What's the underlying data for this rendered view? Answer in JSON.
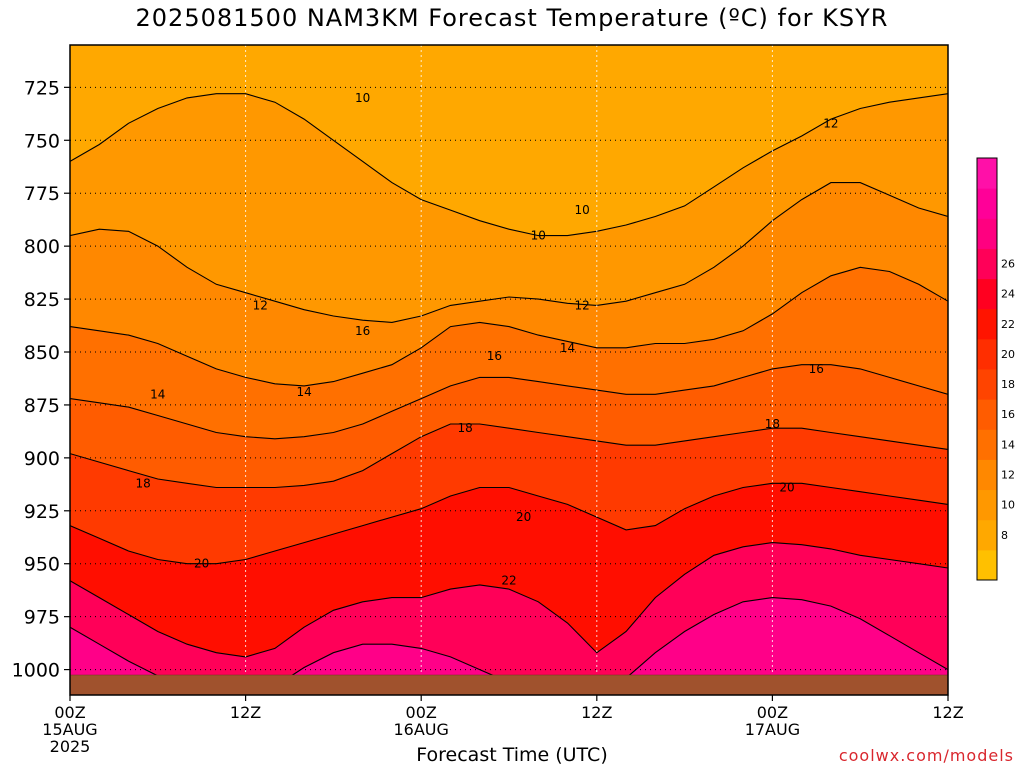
{
  "title": "2025081500 NAM3KM Forecast Temperature (ºC) for KSYR",
  "watermark": "coolwx.com/models",
  "chart_data": {
    "type": "heatmap",
    "title": "2025081500 NAM3KM Forecast Temperature (ºC) for KSYR",
    "xlabel": "Forecast Time (UTC)",
    "ylabel": "",
    "x_range_hours": [
      0,
      60
    ],
    "y_range_hpa": [
      705,
      1012
    ],
    "y_ticks": [
      725,
      750,
      775,
      800,
      825,
      850,
      875,
      900,
      925,
      950,
      975,
      1000
    ],
    "x_ticks": [
      {
        "hour": 0,
        "label": "00Z",
        "sub1": "15AUG",
        "sub2": "2025"
      },
      {
        "hour": 12,
        "label": "12Z",
        "sub1": "",
        "sub2": ""
      },
      {
        "hour": 24,
        "label": "00Z",
        "sub1": "16AUG",
        "sub2": ""
      },
      {
        "hour": 36,
        "label": "12Z",
        "sub1": "",
        "sub2": ""
      },
      {
        "hour": 48,
        "label": "00Z",
        "sub1": "17AUG",
        "sub2": ""
      },
      {
        "hour": 60,
        "label": "12Z",
        "sub1": "",
        "sub2": ""
      }
    ],
    "grid": true,
    "legend": "right",
    "colorbar": {
      "ticks": [
        8,
        10,
        12,
        14,
        16,
        18,
        20,
        22,
        24,
        26
      ],
      "colors": [
        "#ffc000",
        "#ffa800",
        "#ff9800",
        "#ff8800",
        "#ff7000",
        "#ff5c00",
        "#ff4400",
        "#ff2e00",
        "#ff1400",
        "#ff0020",
        "#ff0058",
        "#ff0080",
        "#ff0098",
        "#ff10a8"
      ]
    },
    "contour_labels": [
      "10",
      "10",
      "10",
      "12",
      "12",
      "12",
      "14",
      "14",
      "14",
      "16",
      "16",
      "16",
      "18",
      "18",
      "18",
      "20",
      "20",
      "20",
      "22"
    ],
    "isotherms": [
      {
        "value": 11,
        "points": [
          [
            0,
            760
          ],
          [
            2,
            752
          ],
          [
            4,
            742
          ],
          [
            6,
            735
          ],
          [
            8,
            730
          ],
          [
            10,
            728
          ],
          [
            12,
            728
          ],
          [
            14,
            732
          ],
          [
            16,
            740
          ],
          [
            18,
            750
          ],
          [
            20,
            760
          ],
          [
            22,
            770
          ],
          [
            24,
            778
          ],
          [
            26,
            783
          ],
          [
            28,
            788
          ],
          [
            30,
            792
          ],
          [
            32,
            795
          ],
          [
            34,
            795
          ],
          [
            36,
            793
          ],
          [
            38,
            790
          ],
          [
            40,
            786
          ],
          [
            42,
            781
          ],
          [
            44,
            772
          ],
          [
            46,
            763
          ],
          [
            48,
            755
          ],
          [
            50,
            748
          ],
          [
            52,
            740
          ],
          [
            54,
            735
          ],
          [
            56,
            732
          ],
          [
            58,
            730
          ],
          [
            60,
            728
          ]
        ]
      },
      {
        "value": 13,
        "points": [
          [
            0,
            795
          ],
          [
            2,
            792
          ],
          [
            4,
            793
          ],
          [
            6,
            800
          ],
          [
            8,
            810
          ],
          [
            10,
            818
          ],
          [
            12,
            822
          ],
          [
            14,
            826
          ],
          [
            16,
            830
          ],
          [
            18,
            833
          ],
          [
            20,
            835
          ],
          [
            22,
            836
          ],
          [
            24,
            833
          ],
          [
            26,
            828
          ],
          [
            28,
            826
          ],
          [
            30,
            824
          ],
          [
            32,
            825
          ],
          [
            34,
            827
          ],
          [
            36,
            828
          ],
          [
            38,
            826
          ],
          [
            40,
            822
          ],
          [
            42,
            818
          ],
          [
            44,
            810
          ],
          [
            46,
            800
          ],
          [
            48,
            788
          ],
          [
            50,
            778
          ],
          [
            52,
            770
          ],
          [
            54,
            770
          ],
          [
            56,
            776
          ],
          [
            58,
            782
          ],
          [
            60,
            786
          ]
        ]
      },
      {
        "value": 15,
        "points": [
          [
            0,
            838
          ],
          [
            2,
            840
          ],
          [
            4,
            842
          ],
          [
            6,
            846
          ],
          [
            8,
            852
          ],
          [
            10,
            858
          ],
          [
            12,
            862
          ],
          [
            14,
            865
          ],
          [
            16,
            866
          ],
          [
            18,
            864
          ],
          [
            20,
            860
          ],
          [
            22,
            856
          ],
          [
            24,
            848
          ],
          [
            26,
            838
          ],
          [
            28,
            836
          ],
          [
            30,
            838
          ],
          [
            32,
            842
          ],
          [
            34,
            845
          ],
          [
            36,
            848
          ],
          [
            38,
            848
          ],
          [
            40,
            846
          ],
          [
            42,
            846
          ],
          [
            44,
            844
          ],
          [
            46,
            840
          ],
          [
            48,
            832
          ],
          [
            50,
            822
          ],
          [
            52,
            814
          ],
          [
            54,
            810
          ],
          [
            56,
            812
          ],
          [
            58,
            818
          ],
          [
            60,
            826
          ]
        ]
      },
      {
        "value": 17,
        "points": [
          [
            0,
            872
          ],
          [
            2,
            874
          ],
          [
            4,
            876
          ],
          [
            6,
            880
          ],
          [
            8,
            884
          ],
          [
            10,
            888
          ],
          [
            12,
            890
          ],
          [
            14,
            891
          ],
          [
            16,
            890
          ],
          [
            18,
            888
          ],
          [
            20,
            884
          ],
          [
            22,
            878
          ],
          [
            24,
            872
          ],
          [
            26,
            866
          ],
          [
            28,
            862
          ],
          [
            30,
            862
          ],
          [
            32,
            864
          ],
          [
            34,
            866
          ],
          [
            36,
            868
          ],
          [
            38,
            870
          ],
          [
            40,
            870
          ],
          [
            42,
            868
          ],
          [
            44,
            866
          ],
          [
            46,
            862
          ],
          [
            48,
            858
          ],
          [
            50,
            856
          ],
          [
            52,
            856
          ],
          [
            54,
            858
          ],
          [
            56,
            862
          ],
          [
            58,
            866
          ],
          [
            60,
            870
          ]
        ]
      },
      {
        "value": 19,
        "points": [
          [
            0,
            898
          ],
          [
            2,
            902
          ],
          [
            4,
            906
          ],
          [
            6,
            910
          ],
          [
            8,
            912
          ],
          [
            10,
            914
          ],
          [
            12,
            914
          ],
          [
            14,
            914
          ],
          [
            16,
            913
          ],
          [
            18,
            911
          ],
          [
            20,
            906
          ],
          [
            22,
            898
          ],
          [
            24,
            890
          ],
          [
            26,
            884
          ],
          [
            28,
            884
          ],
          [
            30,
            886
          ],
          [
            32,
            888
          ],
          [
            34,
            890
          ],
          [
            36,
            892
          ],
          [
            38,
            894
          ],
          [
            40,
            894
          ],
          [
            42,
            892
          ],
          [
            44,
            890
          ],
          [
            46,
            888
          ],
          [
            48,
            886
          ],
          [
            50,
            886
          ],
          [
            52,
            888
          ],
          [
            54,
            890
          ],
          [
            56,
            892
          ],
          [
            58,
            894
          ],
          [
            60,
            896
          ]
        ]
      },
      {
        "value": 21,
        "points": [
          [
            0,
            932
          ],
          [
            2,
            938
          ],
          [
            4,
            944
          ],
          [
            6,
            948
          ],
          [
            8,
            950
          ],
          [
            10,
            950
          ],
          [
            12,
            948
          ],
          [
            14,
            944
          ],
          [
            16,
            940
          ],
          [
            18,
            936
          ],
          [
            20,
            932
          ],
          [
            22,
            928
          ],
          [
            24,
            924
          ],
          [
            26,
            918
          ],
          [
            28,
            914
          ],
          [
            30,
            914
          ],
          [
            32,
            918
          ],
          [
            34,
            922
          ],
          [
            36,
            928
          ],
          [
            38,
            934
          ],
          [
            40,
            932
          ],
          [
            42,
            924
          ],
          [
            44,
            918
          ],
          [
            46,
            914
          ],
          [
            48,
            912
          ],
          [
            50,
            912
          ],
          [
            52,
            914
          ],
          [
            54,
            916
          ],
          [
            56,
            918
          ],
          [
            58,
            920
          ],
          [
            60,
            922
          ]
        ]
      },
      {
        "value": 23,
        "points": [
          [
            0,
            958
          ],
          [
            2,
            966
          ],
          [
            4,
            974
          ],
          [
            6,
            982
          ],
          [
            8,
            988
          ],
          [
            10,
            992
          ],
          [
            12,
            994
          ],
          [
            14,
            990
          ],
          [
            16,
            980
          ],
          [
            18,
            972
          ],
          [
            20,
            968
          ],
          [
            22,
            966
          ],
          [
            24,
            966
          ],
          [
            26,
            962
          ],
          [
            28,
            960
          ],
          [
            30,
            962
          ],
          [
            32,
            968
          ],
          [
            34,
            978
          ],
          [
            36,
            992
          ],
          [
            38,
            982
          ],
          [
            40,
            966
          ],
          [
            42,
            955
          ],
          [
            44,
            946
          ],
          [
            46,
            942
          ],
          [
            48,
            940
          ],
          [
            50,
            941
          ],
          [
            52,
            943
          ],
          [
            54,
            946
          ],
          [
            56,
            948
          ],
          [
            58,
            950
          ],
          [
            60,
            952
          ]
        ]
      },
      {
        "value": 25,
        "points": [
          [
            0,
            980
          ],
          [
            2,
            988
          ],
          [
            4,
            996
          ],
          [
            6,
            1003
          ],
          [
            8,
            1008
          ],
          [
            10,
            1010
          ],
          [
            12,
            1012
          ],
          [
            14,
            1008
          ],
          [
            16,
            999
          ],
          [
            18,
            992
          ],
          [
            20,
            988
          ],
          [
            22,
            988
          ],
          [
            24,
            990
          ],
          [
            26,
            994
          ],
          [
            28,
            1000
          ],
          [
            30,
            1006
          ],
          [
            32,
            1010
          ],
          [
            34,
            1012
          ],
          [
            36,
            1012
          ],
          [
            38,
            1004
          ],
          [
            40,
            992
          ],
          [
            42,
            982
          ],
          [
            44,
            974
          ],
          [
            46,
            968
          ],
          [
            48,
            966
          ],
          [
            50,
            967
          ],
          [
            52,
            970
          ],
          [
            54,
            976
          ],
          [
            56,
            984
          ],
          [
            58,
            992
          ],
          [
            60,
            1000
          ]
        ]
      }
    ]
  }
}
